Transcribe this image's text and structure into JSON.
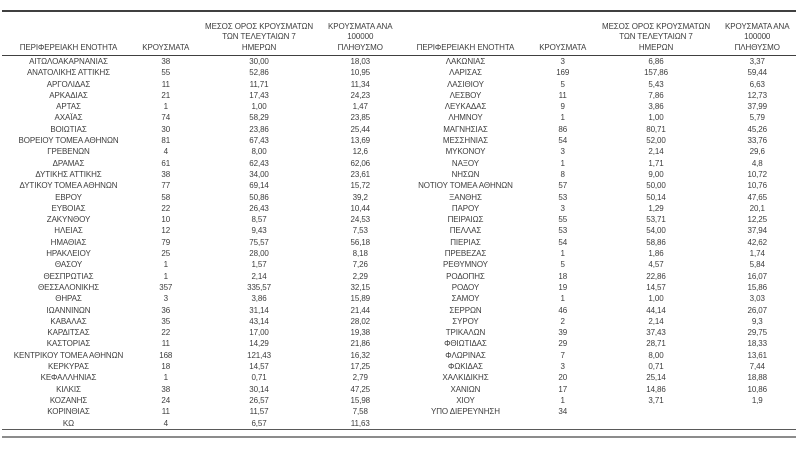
{
  "colors": {
    "background": "#ffffff",
    "text": "#3d3d3d",
    "rule_dark": "#404040",
    "rule_gray": "#8c8c8c"
  },
  "table": {
    "columns": {
      "region": "ΠΕΡΙΦΕΡΕΙΑΚΗ ΕΝΟΤΗΤΑ",
      "cases": "ΚΡΟΥΣΜΑΤΑ",
      "avg7": "ΜΕΣΟΣ ΟΡΟΣ ΚΡΟΥΣΜΑΤΩΝ\nΤΩΝ ΤΕΛΕΥΤΑΙΩΝ 7\nΗΜΕΡΩΝ",
      "per100k": "ΚΡΟΥΣΜΑΤΑ ΑΝΑ 100000\nΠΛΗΘΥΣΜΟ"
    },
    "left_rows": [
      [
        "ΑΙΤΩΛΟΑΚΑΡΝΑΝΙΑΣ",
        "38",
        "30,00",
        "18,03"
      ],
      [
        "ΑΝΑΤΟΛΙΚΗΣ ΑΤΤΙΚΗΣ",
        "55",
        "52,86",
        "10,95"
      ],
      [
        "ΑΡΓΟΛΙΔΑΣ",
        "11",
        "11,71",
        "11,34"
      ],
      [
        "ΑΡΚΑΔΙΑΣ",
        "21",
        "17,43",
        "24,23"
      ],
      [
        "ΑΡΤΑΣ",
        "1",
        "1,00",
        "1,47"
      ],
      [
        "ΑΧΑΪΑΣ",
        "74",
        "58,29",
        "23,85"
      ],
      [
        "ΒΟΙΩΤΙΑΣ",
        "30",
        "23,86",
        "25,44"
      ],
      [
        "ΒΟΡΕΙΟΥ ΤΟΜΕΑ ΑΘΗΝΩΝ",
        "81",
        "67,43",
        "13,69"
      ],
      [
        "ΓΡΕΒΕΝΩΝ",
        "4",
        "8,00",
        "12,6"
      ],
      [
        "ΔΡΑΜΑΣ",
        "61",
        "62,43",
        "62,06"
      ],
      [
        "ΔΥΤΙΚΗΣ ΑΤΤΙΚΗΣ",
        "38",
        "34,00",
        "23,61"
      ],
      [
        "ΔΥΤΙΚΟΥ ΤΟΜΕΑ ΑΘΗΝΩΝ",
        "77",
        "69,14",
        "15,72"
      ],
      [
        "ΕΒΡΟΥ",
        "58",
        "50,86",
        "39,2"
      ],
      [
        "ΕΥΒΟΙΑΣ",
        "22",
        "26,43",
        "10,44"
      ],
      [
        "ΖΑΚΥΝΘΟΥ",
        "10",
        "8,57",
        "24,53"
      ],
      [
        "ΗΛΕΙΑΣ",
        "12",
        "9,43",
        "7,53"
      ],
      [
        "ΗΜΑΘΙΑΣ",
        "79",
        "75,57",
        "56,18"
      ],
      [
        "ΗΡΑΚΛΕΙΟΥ",
        "25",
        "28,00",
        "8,18"
      ],
      [
        "ΘΑΣΟΥ",
        "1",
        "1,57",
        "7,26"
      ],
      [
        "ΘΕΣΠΡΩΤΙΑΣ",
        "1",
        "2,14",
        "2,29"
      ],
      [
        "ΘΕΣΣΑΛΟΝΙΚΗΣ",
        "357",
        "335,57",
        "32,15"
      ],
      [
        "ΘΗΡΑΣ",
        "3",
        "3,86",
        "15,89"
      ],
      [
        "ΙΩΑΝΝΙΝΩΝ",
        "36",
        "31,14",
        "21,44"
      ],
      [
        "ΚΑΒΑΛΑΣ",
        "35",
        "43,14",
        "28,02"
      ],
      [
        "ΚΑΡΔΙΤΣΑΣ",
        "22",
        "17,00",
        "19,38"
      ],
      [
        "ΚΑΣΤΟΡΙΑΣ",
        "11",
        "14,29",
        "21,86"
      ],
      [
        "ΚΕΝΤΡΙΚΟΥ ΤΟΜΕΑ ΑΘΗΝΩΝ",
        "168",
        "121,43",
        "16,32"
      ],
      [
        "ΚΕΡΚΥΡΑΣ",
        "18",
        "14,57",
        "17,25"
      ],
      [
        "ΚΕΦΑΛΛΗΝΙΑΣ",
        "1",
        "0,71",
        "2,79"
      ],
      [
        "ΚΙΛΚΙΣ",
        "38",
        "30,14",
        "47,25"
      ],
      [
        "ΚΟΖΑΝΗΣ",
        "24",
        "26,57",
        "15,98"
      ],
      [
        "ΚΟΡΙΝΘΙΑΣ",
        "11",
        "11,57",
        "7,58"
      ],
      [
        "ΚΩ",
        "4",
        "6,57",
        "11,63"
      ]
    ],
    "right_rows": [
      [
        "ΛΑΚΩΝΙΑΣ",
        "3",
        "6,86",
        "3,37"
      ],
      [
        "ΛΑΡΙΣΑΣ",
        "169",
        "157,86",
        "59,44"
      ],
      [
        "ΛΑΣΙΘΙΟΥ",
        "5",
        "5,43",
        "6,63"
      ],
      [
        "ΛΕΣΒΟΥ",
        "11",
        "7,86",
        "12,73"
      ],
      [
        "ΛΕΥΚΑΔΑΣ",
        "9",
        "3,86",
        "37,99"
      ],
      [
        "ΛΗΜΝΟΥ",
        "1",
        "1,00",
        "5,79"
      ],
      [
        "ΜΑΓΝΗΣΙΑΣ",
        "86",
        "80,71",
        "45,26"
      ],
      [
        "ΜΕΣΣΗΝΙΑΣ",
        "54",
        "52,00",
        "33,76"
      ],
      [
        "ΜΥΚΟΝΟΥ",
        "3",
        "2,14",
        "29,6"
      ],
      [
        "ΝΑΞΟΥ",
        "1",
        "1,71",
        "4,8"
      ],
      [
        "ΝΗΣΩΝ",
        "8",
        "9,00",
        "10,72"
      ],
      [
        "ΝΟΤΙΟΥ ΤΟΜΕΑ ΑΘΗΝΩΝ",
        "57",
        "50,00",
        "10,76"
      ],
      [
        "ΞΑΝΘΗΣ",
        "53",
        "50,14",
        "47,65"
      ],
      [
        "ΠΑΡΟΥ",
        "3",
        "1,29",
        "20,1"
      ],
      [
        "ΠΕΙΡΑΙΩΣ",
        "55",
        "53,71",
        "12,25"
      ],
      [
        "ΠΕΛΛΑΣ",
        "53",
        "54,00",
        "37,94"
      ],
      [
        "ΠΙΕΡΙΑΣ",
        "54",
        "58,86",
        "42,62"
      ],
      [
        "ΠΡΕΒΕΖΑΣ",
        "1",
        "1,86",
        "1,74"
      ],
      [
        "ΡΕΘΥΜΝΟΥ",
        "5",
        "4,57",
        "5,84"
      ],
      [
        "ΡΟΔΟΠΗΣ",
        "18",
        "22,86",
        "16,07"
      ],
      [
        "ΡΟΔΟΥ",
        "19",
        "14,57",
        "15,86"
      ],
      [
        "ΣΑΜΟΥ",
        "1",
        "1,00",
        "3,03"
      ],
      [
        "ΣΕΡΡΩΝ",
        "46",
        "44,14",
        "26,07"
      ],
      [
        "ΣΥΡΟΥ",
        "2",
        "2,14",
        "9,3"
      ],
      [
        "ΤΡΙΚΑΛΩΝ",
        "39",
        "37,43",
        "29,75"
      ],
      [
        "ΦΘΙΩΤΙΔΑΣ",
        "29",
        "28,71",
        "18,33"
      ],
      [
        "ΦΛΩΡΙΝΑΣ",
        "7",
        "8,00",
        "13,61"
      ],
      [
        "ΦΩΚΙΔΑΣ",
        "3",
        "0,71",
        "7,44"
      ],
      [
        "ΧΑΛΚΙΔΙΚΗΣ",
        "20",
        "25,14",
        "18,88"
      ],
      [
        "ΧΑΝΙΩΝ",
        "17",
        "14,86",
        "10,86"
      ],
      [
        "ΧΙΟΥ",
        "1",
        "3,71",
        "1,9"
      ],
      [
        "ΥΠΟ ΔΙΕΡΕΥΝΗΣΗ",
        "34",
        "",
        ""
      ]
    ]
  }
}
